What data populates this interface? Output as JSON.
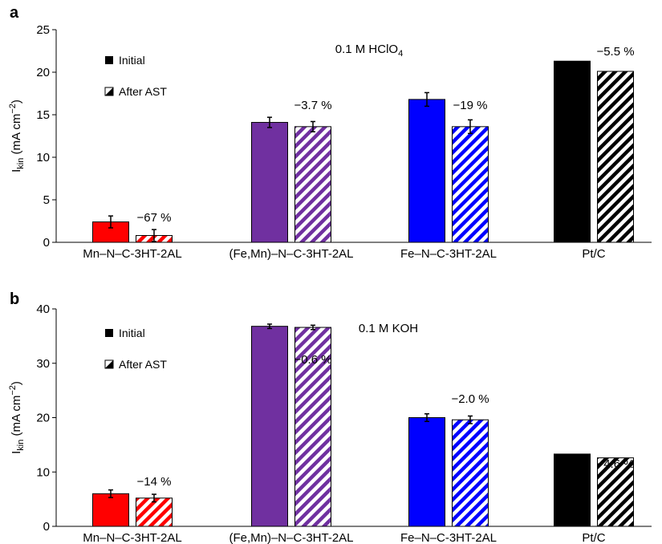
{
  "colors": {
    "mn": "#ff0000",
    "femn": "#7030a0",
    "fe": "#0000ff",
    "ptc": "#000000"
  },
  "legend": {
    "initial": "Initial",
    "after": "After AST"
  },
  "chart_data": [
    {
      "type": "bar",
      "panel": "a",
      "condition": {
        "base": "0.1 M HClO",
        "sub": "4"
      },
      "ylabel": {
        "base": "I",
        "sub": "kin",
        "unit": " (mA cm",
        "sup": "−2",
        "close": ")"
      },
      "ylim": [
        0,
        25
      ],
      "yticks": [
        0,
        5,
        10,
        15,
        20,
        25
      ],
      "grid": false,
      "legend_position": "top-left",
      "categories": [
        "Mn–N–C-3HT-2AL",
        "(Fe,Mn)–N–C-3HT-2AL",
        "Fe–N–C-3HT-2AL",
        "Pt/C"
      ],
      "bar_colors": [
        "#ff0000",
        "#7030a0",
        "#0000ff",
        "#000000"
      ],
      "series": [
        {
          "name": "Initial",
          "values": [
            2.4,
            14.1,
            16.8,
            21.3
          ],
          "errors": [
            0.7,
            0.6,
            0.8,
            0
          ]
        },
        {
          "name": "After AST",
          "values": [
            0.8,
            13.6,
            13.6,
            20.1
          ],
          "errors": [
            0.7,
            0.6,
            0.8,
            0
          ]
        }
      ],
      "change_labels": [
        "−67 %",
        "−3.7 %",
        "−19 %",
        "−5.5 %"
      ]
    },
    {
      "type": "bar",
      "panel": "b",
      "condition": {
        "base": "0.1 M KOH",
        "sub": ""
      },
      "ylabel": {
        "base": "I",
        "sub": "kin",
        "unit": " (mA cm",
        "sup": "−2",
        "close": ")"
      },
      "ylim": [
        0,
        40
      ],
      "yticks": [
        0,
        10,
        20,
        30,
        40
      ],
      "grid": false,
      "legend_position": "top-left",
      "categories": [
        "Mn–N–C-3HT-2AL",
        "(Fe,Mn)–N–C-3HT-2AL",
        "Fe–N–C-3HT-2AL",
        "Pt/C"
      ],
      "bar_colors": [
        "#ff0000",
        "#7030a0",
        "#0000ff",
        "#000000"
      ],
      "series": [
        {
          "name": "Initial",
          "values": [
            6.0,
            36.8,
            20.0,
            13.3
          ],
          "errors": [
            0.7,
            0.4,
            0.7,
            0
          ]
        },
        {
          "name": "After AST",
          "values": [
            5.2,
            36.6,
            19.6,
            12.6
          ],
          "errors": [
            0.7,
            0.4,
            0.7,
            0
          ]
        }
      ],
      "change_labels": [
        "−14 %",
        "−0.6 %",
        "−2.0 %",
        "−4.6 %"
      ]
    }
  ]
}
